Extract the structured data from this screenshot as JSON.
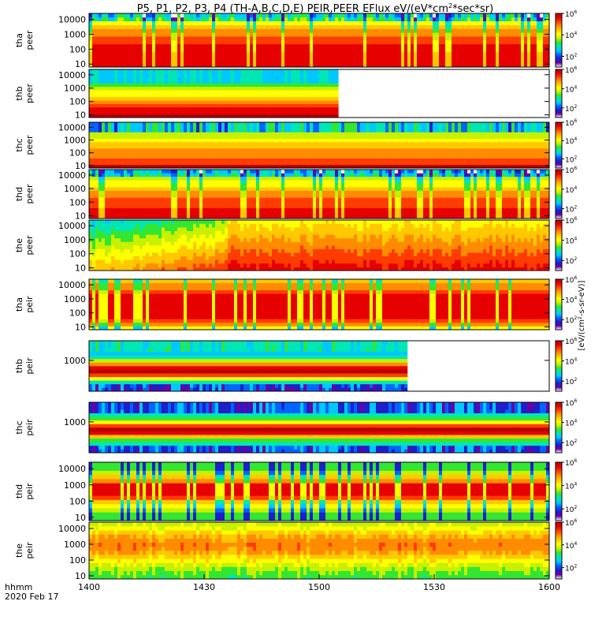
{
  "chart_data": {
    "type": "heatmap",
    "title": "P5, P1, P2, P3, P4 (TH-A,B,C,D,E) PEIR,PEER EFlux eV/(eV*cm²*sec*sr)",
    "title_parts": {
      "main": "P5, P1, P2, P3, P4 (TH-A,B,C,D,E) PEIR,PEER EFlux eV/(eV*cm",
      "sup": "2",
      "tail": "*sec*sr)"
    },
    "x": {
      "range": [
        0,
        120
      ],
      "ticks": [
        0,
        30,
        60,
        90,
        120
      ],
      "tick_labels": [
        "1400",
        "1430",
        "1500",
        "1530",
        "1600"
      ],
      "label_line1": "hhmm",
      "label_line2": "2020 Feb 17"
    },
    "colorbar": {
      "range_log10": [
        1,
        6
      ],
      "tick_log10": [
        2,
        4,
        6
      ],
      "tick_labels": [
        "10",
        "10",
        "10"
      ],
      "tick_exps": [
        "2",
        "4",
        "6"
      ],
      "colors": [
        "#ffffff",
        "#6a00a8",
        "#1e1ecc",
        "#0064ff",
        "#00c8ff",
        "#00e6b4",
        "#32e632",
        "#c8f000",
        "#ffff00",
        "#ffc800",
        "#ff8c00",
        "#ff3c00",
        "#e60000",
        "#b40000"
      ],
      "label": "[eV/(cm²-s-sr-eV)]"
    },
    "panels": [
      {
        "label1": "tha",
        "label2": "peer",
        "yticks": [
          "10",
          "100",
          "1000",
          "10000"
        ],
        "ytick_log10": [
          1,
          2,
          3,
          4
        ],
        "yrange_log10": [
          0.8,
          4.4
        ],
        "data_end_min": 120
      },
      {
        "label1": "thb",
        "label2": "peer",
        "yticks": [
          "10",
          "100",
          "1000",
          "10000"
        ],
        "ytick_log10": [
          1,
          2,
          3,
          4
        ],
        "yrange_log10": [
          0.8,
          4.4
        ],
        "data_end_min": 65
      },
      {
        "label1": "thc",
        "label2": "peer",
        "yticks": [
          "10",
          "100",
          "1000",
          "10000"
        ],
        "ytick_log10": [
          1,
          2,
          3,
          4
        ],
        "yrange_log10": [
          0.8,
          4.4
        ],
        "data_end_min": 120
      },
      {
        "label1": "thd",
        "label2": "peer",
        "yticks": [
          "10",
          "100",
          "1000",
          "10000"
        ],
        "ytick_log10": [
          1,
          2,
          3,
          4
        ],
        "yrange_log10": [
          0.8,
          4.4
        ],
        "data_end_min": 120
      },
      {
        "label1": "the",
        "label2": "peer",
        "yticks": [
          "10",
          "100",
          "1000",
          "10000"
        ],
        "ytick_log10": [
          1,
          2,
          3,
          4
        ],
        "yrange_log10": [
          0.8,
          4.4
        ],
        "data_end_min": 120
      },
      {
        "label1": "tha",
        "label2": "peir",
        "yticks": [
          "10",
          "100",
          "1000",
          "10000"
        ],
        "ytick_log10": [
          1,
          2,
          3,
          4
        ],
        "yrange_log10": [
          0.8,
          4.4
        ],
        "data_end_min": 120
      },
      {
        "label1": "thb",
        "label2": "peir",
        "yticks": [
          "1000"
        ],
        "ytick_log10": [
          3
        ],
        "yrange_log10": [
          0.8,
          4.4
        ],
        "data_end_min": 83
      },
      {
        "label1": "thc",
        "label2": "peir",
        "yticks": [
          "1000"
        ],
        "ytick_log10": [
          3
        ],
        "yrange_log10": [
          0.8,
          4.4
        ],
        "data_end_min": 120
      },
      {
        "label1": "thd",
        "label2": "peir",
        "yticks": [
          "10",
          "100",
          "1000",
          "10000"
        ],
        "ytick_log10": [
          1,
          2,
          3,
          4
        ],
        "yrange_log10": [
          0.8,
          4.4
        ],
        "data_end_min": 120
      },
      {
        "label1": "the",
        "label2": "peir",
        "yticks": [
          "10",
          "100",
          "1000",
          "10000"
        ],
        "ytick_log10": [
          1,
          2,
          3,
          4
        ],
        "yrange_log10": [
          0.8,
          4.4
        ],
        "data_end_min": 120
      }
    ]
  }
}
